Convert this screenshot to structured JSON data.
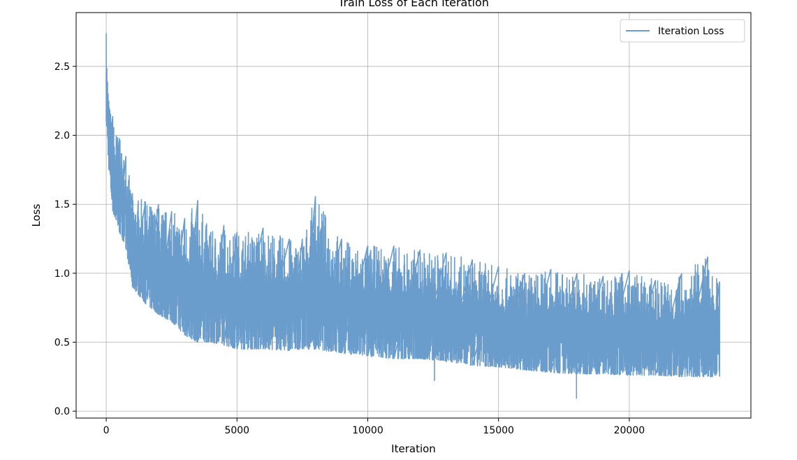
{
  "chart_data": {
    "type": "line",
    "title": "Train Loss of Each Iteration",
    "xlabel": "Iteration",
    "ylabel": "Loss",
    "xlim": [
      -1150,
      24650
    ],
    "ylim": [
      -0.05,
      2.89
    ],
    "xticks": [
      0,
      5000,
      10000,
      15000,
      20000
    ],
    "xtick_labels": [
      "0",
      "5000",
      "10000",
      "15000",
      "20000"
    ],
    "yticks": [
      0.0,
      0.5,
      1.0,
      1.5,
      2.0,
      2.5
    ],
    "ytick_labels": [
      "0.0",
      "0.5",
      "1.0",
      "1.5",
      "2.0",
      "2.5"
    ],
    "grid": true,
    "legend_position": "upper right",
    "series": [
      {
        "name": "Iteration Loss",
        "color": "#6b9dcc",
        "x": [
          0,
          100,
          250,
          500,
          750,
          1000,
          1500,
          2000,
          2500,
          3000,
          3500,
          4000,
          4500,
          5000,
          6000,
          7000,
          7500,
          8000,
          9000,
          10000,
          11000,
          12000,
          13000,
          14000,
          15000,
          16000,
          17000,
          18000,
          19000,
          20000,
          21000,
          22000,
          23000,
          23450
        ],
        "upper": [
          2.74,
          2.25,
          2.14,
          1.98,
          1.85,
          1.58,
          1.52,
          1.5,
          1.45,
          1.4,
          1.53,
          1.3,
          1.35,
          1.3,
          1.33,
          1.25,
          1.25,
          1.56,
          1.25,
          1.2,
          1.2,
          1.17,
          1.15,
          1.1,
          1.05,
          1.0,
          1.03,
          1.0,
          0.98,
          1.02,
          0.95,
          1.0,
          1.12,
          0.94
        ],
        "lower": [
          2.1,
          1.75,
          1.45,
          1.3,
          1.18,
          0.9,
          0.78,
          0.7,
          0.65,
          0.55,
          0.5,
          0.5,
          0.48,
          0.45,
          0.45,
          0.44,
          0.45,
          0.45,
          0.42,
          0.4,
          0.38,
          0.38,
          0.36,
          0.33,
          0.32,
          0.3,
          0.28,
          0.27,
          0.27,
          0.26,
          0.26,
          0.25,
          0.25,
          0.25
        ],
        "min_points": [
          [
            12550,
            0.22
          ],
          [
            17980,
            0.09
          ]
        ]
      }
    ]
  }
}
